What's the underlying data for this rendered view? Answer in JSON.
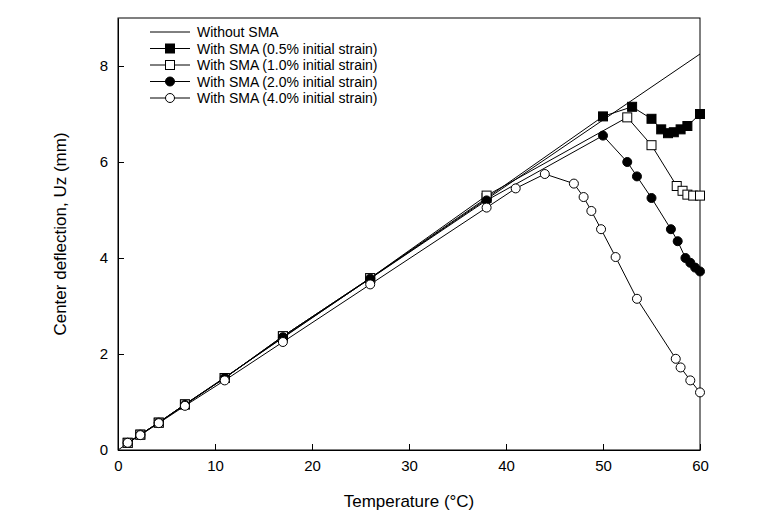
{
  "chart_data": {
    "type": "line",
    "x_label": "Temperature (°C)",
    "y_label": "Center deflection, Uz (mm)",
    "xlim": [
      0,
      60
    ],
    "ylim": [
      0,
      9
    ],
    "xticks": [
      0,
      10,
      20,
      30,
      40,
      50,
      60
    ],
    "yticks": [
      0,
      2,
      4,
      6,
      8
    ],
    "grid": false,
    "legend": "upper-left",
    "series": [
      {
        "name": "Without SMA",
        "color": "#000000",
        "marker": "none",
        "x": [
          0,
          60
        ],
        "values": [
          0,
          8.25
        ]
      },
      {
        "name": "With SMA (0.5% initial strain)",
        "color": "#000000",
        "marker": "square",
        "x": [
          1,
          2.3,
          4.2,
          6.9,
          11,
          17,
          26,
          38,
          50,
          53,
          55,
          56,
          56.7,
          57.3,
          58,
          58.7,
          60
        ],
        "values": [
          0.15,
          0.32,
          0.57,
          0.95,
          1.5,
          2.37,
          3.58,
          5.25,
          6.95,
          7.15,
          6.9,
          6.68,
          6.6,
          6.62,
          6.68,
          6.75,
          7.0
        ]
      },
      {
        "name": "With SMA (1.0% initial strain)",
        "color": "#000000",
        "marker": "open-square",
        "x": [
          1,
          2.3,
          4.2,
          6.9,
          11,
          17,
          26,
          38,
          52.5,
          55,
          57.6,
          58.2,
          58.7,
          59.3,
          60
        ],
        "values": [
          0.15,
          0.32,
          0.57,
          0.95,
          1.5,
          2.37,
          3.58,
          5.3,
          6.93,
          6.35,
          5.5,
          5.4,
          5.32,
          5.3,
          5.3
        ]
      },
      {
        "name": "With SMA (2.0% initial strain)",
        "color": "#000000",
        "marker": "circle",
        "x": [
          1,
          2.3,
          4.2,
          6.9,
          11,
          17,
          26,
          38,
          50,
          52.5,
          53.5,
          55,
          57,
          57.7,
          58.5,
          59,
          59.5,
          60
        ],
        "values": [
          0.15,
          0.32,
          0.57,
          0.94,
          1.5,
          2.35,
          3.57,
          5.2,
          6.55,
          6.0,
          5.7,
          5.25,
          4.6,
          4.35,
          4.0,
          3.9,
          3.8,
          3.72
        ]
      },
      {
        "name": "With SMA (4.0% initial strain)",
        "color": "#000000",
        "marker": "open-circle",
        "x": [
          1,
          2.3,
          4.2,
          6.9,
          11,
          17,
          26,
          38,
          41,
          44,
          47,
          48,
          48.8,
          49.8,
          51.3,
          53.5,
          57.5,
          58,
          59,
          60
        ],
        "values": [
          0.15,
          0.31,
          0.56,
          0.92,
          1.45,
          2.25,
          3.45,
          5.05,
          5.45,
          5.75,
          5.55,
          5.27,
          4.98,
          4.6,
          4.02,
          3.15,
          1.9,
          1.72,
          1.45,
          1.2
        ]
      }
    ]
  }
}
